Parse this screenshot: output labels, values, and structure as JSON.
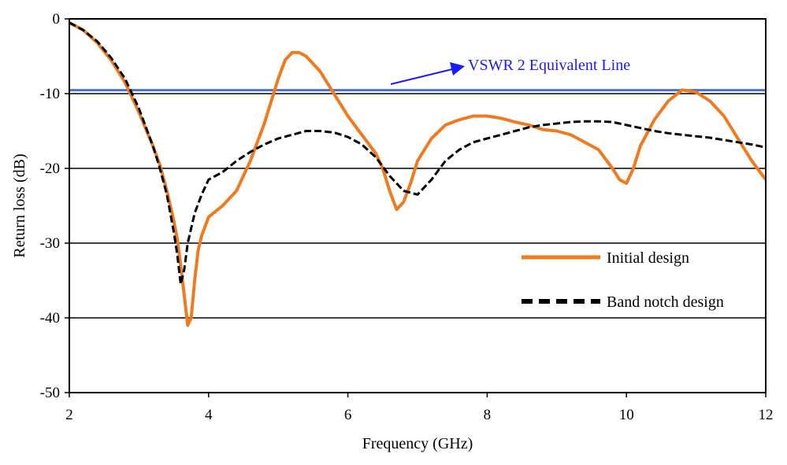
{
  "chart_data": {
    "type": "line",
    "title": "",
    "xlabel": "Frequency (GHz)",
    "ylabel": "Return loss (dB)",
    "xlim": [
      2,
      12
    ],
    "ylim": [
      -50,
      0
    ],
    "xticks": [
      2,
      4,
      6,
      8,
      10,
      12
    ],
    "yticks": [
      0,
      -10,
      -20,
      -30,
      -40,
      -50
    ],
    "xtick_labels": [
      "2",
      "4",
      "6",
      "8",
      "10",
      "12"
    ],
    "ytick_labels": [
      "0",
      "-10",
      "-20",
      "-30",
      "-40",
      "-50"
    ],
    "grid": "horizontal major lines",
    "legend_position": "bottom-right inside plot",
    "annotation": {
      "text": "VSWR 2 Equivalent Line",
      "points_to": "reference line at -9.54 dB",
      "color": "#1a1aff"
    },
    "reference_line": {
      "y": -9.54,
      "color": "#4a6fd6"
    },
    "series": [
      {
        "name": "Initial design",
        "style": "solid",
        "color": "#f07a20",
        "x": [
          2.0,
          2.2,
          2.4,
          2.6,
          2.8,
          3.0,
          3.2,
          3.3,
          3.4,
          3.5,
          3.55,
          3.6,
          3.65,
          3.7,
          3.75,
          3.8,
          3.85,
          3.9,
          4.0,
          4.2,
          4.4,
          4.6,
          4.8,
          5.0,
          5.1,
          5.2,
          5.3,
          5.4,
          5.6,
          5.8,
          6.0,
          6.2,
          6.4,
          6.5,
          6.6,
          6.7,
          6.8,
          6.9,
          7.0,
          7.2,
          7.4,
          7.6,
          7.8,
          8.0,
          8.2,
          8.4,
          8.6,
          8.8,
          9.0,
          9.2,
          9.4,
          9.6,
          9.8,
          9.9,
          10.0,
          10.1,
          10.2,
          10.4,
          10.6,
          10.8,
          11.0,
          11.2,
          11.4,
          11.6,
          11.8,
          12.0
        ],
        "y": [
          -0.5,
          -1.5,
          -3.2,
          -5.5,
          -8.5,
          -12.5,
          -17.0,
          -19.5,
          -23.0,
          -27.0,
          -29.5,
          -33.0,
          -37.0,
          -41.0,
          -40.0,
          -35.0,
          -31.0,
          -29.0,
          -26.5,
          -25.0,
          -23.0,
          -19.0,
          -14.0,
          -8.0,
          -5.5,
          -4.5,
          -4.5,
          -5.0,
          -7.0,
          -10.0,
          -13.0,
          -15.5,
          -18.0,
          -20.0,
          -23.0,
          -25.5,
          -24.5,
          -22.0,
          -19.0,
          -16.0,
          -14.2,
          -13.5,
          -13.0,
          -13.0,
          -13.3,
          -13.8,
          -14.2,
          -14.8,
          -15.0,
          -15.5,
          -16.5,
          -17.5,
          -20.0,
          -21.5,
          -22.0,
          -20.0,
          -17.0,
          -13.5,
          -11.0,
          -9.5,
          -9.8,
          -11.0,
          -13.0,
          -16.0,
          -19.0,
          -21.5
        ]
      },
      {
        "name": "Band notch design",
        "style": "dashed",
        "color": "#000000",
        "x": [
          2.0,
          2.2,
          2.4,
          2.6,
          2.8,
          3.0,
          3.2,
          3.3,
          3.4,
          3.45,
          3.5,
          3.55,
          3.6,
          3.65,
          3.7,
          3.75,
          3.8,
          3.9,
          4.0,
          4.2,
          4.4,
          4.6,
          4.8,
          5.0,
          5.2,
          5.4,
          5.6,
          5.8,
          6.0,
          6.2,
          6.4,
          6.6,
          6.8,
          7.0,
          7.2,
          7.4,
          7.6,
          7.8,
          8.0,
          8.2,
          8.4,
          8.6,
          8.8,
          9.0,
          9.2,
          9.4,
          9.6,
          9.8,
          10.0,
          10.2,
          10.4,
          10.6,
          10.8,
          11.0,
          11.2,
          11.4,
          11.6,
          11.8,
          12.0
        ],
        "y": [
          -0.5,
          -1.5,
          -3.0,
          -5.2,
          -8.0,
          -12.0,
          -17.0,
          -20.0,
          -23.5,
          -26.0,
          -28.5,
          -31.5,
          -35.5,
          -33.5,
          -30.0,
          -28.0,
          -26.0,
          -23.5,
          -21.5,
          -20.5,
          -19.0,
          -17.8,
          -16.8,
          -16.0,
          -15.5,
          -15.0,
          -15.0,
          -15.2,
          -15.8,
          -16.8,
          -18.5,
          -21.0,
          -23.0,
          -23.5,
          -21.5,
          -19.0,
          -17.5,
          -16.5,
          -16.0,
          -15.5,
          -15.0,
          -14.5,
          -14.2,
          -14.0,
          -13.8,
          -13.7,
          -13.7,
          -13.8,
          -14.2,
          -14.6,
          -15.0,
          -15.3,
          -15.5,
          -15.7,
          -15.9,
          -16.2,
          -16.5,
          -16.8,
          -17.2
        ]
      }
    ]
  }
}
